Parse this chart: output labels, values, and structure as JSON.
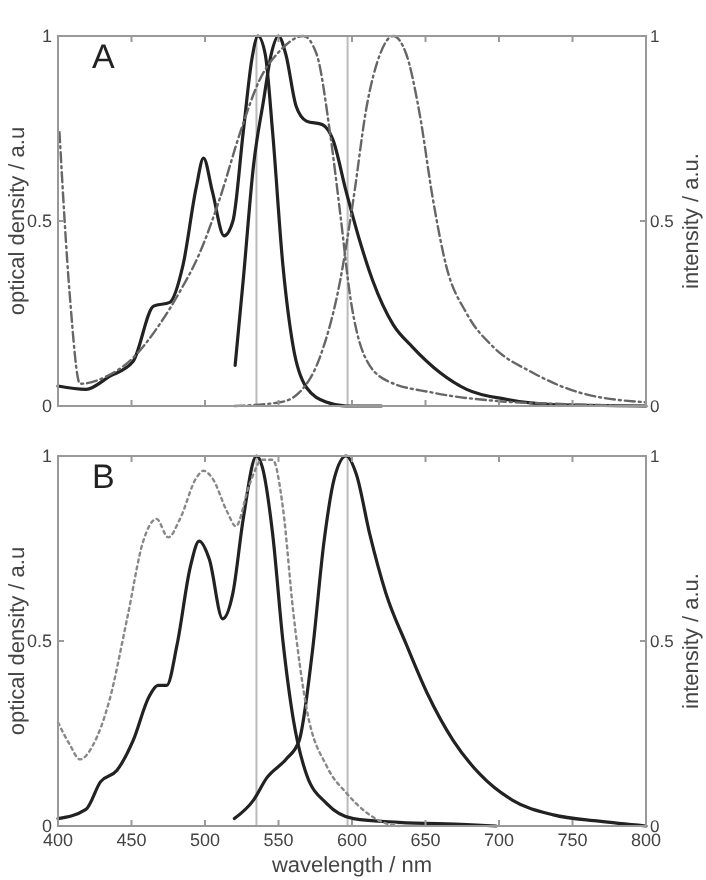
{
  "chart_data": [
    {
      "type": "line",
      "annotations": [
        "A"
      ],
      "ylabel": "optical density / a.u",
      "y2label": "intensity / a.u.",
      "xlim": [
        400,
        800
      ],
      "xticks": [
        400,
        450,
        500,
        550,
        600,
        650,
        700,
        750,
        800
      ],
      "ylim": [
        0,
        1
      ],
      "yticks": [
        0,
        0.5,
        1
      ],
      "y2lim": [
        0,
        1
      ],
      "y2ticks": [
        0,
        0.5,
        1
      ],
      "tick_labels": "y",
      "grid": false,
      "ref_lines": [
        {
          "axis": "x",
          "value": 535,
          "color": "#bbbbbb"
        },
        {
          "axis": "x",
          "value": 597,
          "color": "#bbbbbb"
        }
      ],
      "series": [
        {
          "color": "#222222",
          "line_style": "solid",
          "x": [
            400,
            419,
            435,
            451,
            465,
            476,
            485,
            494,
            499,
            505,
            513,
            519,
            526,
            532,
            536,
            541,
            546,
            553,
            560,
            569,
            583,
            596,
            620
          ],
          "values": [
            0.054,
            0.045,
            0.08,
            0.12,
            0.27,
            0.28,
            0.38,
            0.59,
            0.67,
            0.58,
            0.46,
            0.5,
            0.74,
            0.94,
            1,
            0.95,
            0.74,
            0.38,
            0.16,
            0.05,
            0.01,
            0,
            0
          ]
        },
        {
          "color": "#222222",
          "line_style": "solid",
          "x": [
            520.5,
            526,
            533,
            540,
            545,
            550,
            555,
            562,
            569,
            580,
            587,
            596,
            605,
            614,
            628,
            641,
            660,
            678,
            705,
            736,
            800
          ],
          "values": [
            0.11,
            0.34,
            0.65,
            0.83,
            0.95,
            1,
            0.95,
            0.81,
            0.77,
            0.76,
            0.72,
            0.58,
            0.45,
            0.34,
            0.22,
            0.16,
            0.09,
            0.045,
            0.018,
            0.004,
            0
          ]
        },
        {
          "color": "#666666",
          "line_style": "dashed",
          "x": [
            401,
            408,
            415,
            433,
            451,
            469,
            483,
            496,
            510,
            524,
            537,
            551,
            567,
            576,
            585,
            592,
            599,
            608,
            623,
            655,
            700,
            746,
            800
          ],
          "values": [
            0.74,
            0.3,
            0.06,
            0.08,
            0.13,
            0.22,
            0.31,
            0.41,
            0.56,
            0.74,
            0.88,
            0.96,
            1,
            0.95,
            0.74,
            0.52,
            0.29,
            0.14,
            0.07,
            0.036,
            0.013,
            0.005,
            0
          ]
        },
        {
          "color": "#666666",
          "line_style": "dashed",
          "x": [
            520,
            551,
            564,
            578,
            592,
            601,
            610,
            619,
            628,
            637,
            646,
            655,
            664,
            678,
            696,
            723,
            755,
            800
          ],
          "values": [
            0,
            0.01,
            0.036,
            0.13,
            0.34,
            0.56,
            0.81,
            0.95,
            1,
            0.95,
            0.79,
            0.56,
            0.38,
            0.25,
            0.16,
            0.09,
            0.036,
            0.01
          ]
        }
      ]
    },
    {
      "type": "line",
      "annotations": [
        "B"
      ],
      "xlabel": "wavelength / nm",
      "ylabel": "optical density / a.u",
      "y2label": "intensity / a.u.",
      "xlim": [
        400,
        800
      ],
      "xticks": [
        400,
        450,
        500,
        550,
        600,
        650,
        700,
        750,
        800
      ],
      "ylim": [
        0,
        1
      ],
      "yticks": [
        0,
        0.5,
        1
      ],
      "y2lim": [
        0,
        1
      ],
      "y2ticks": [
        0,
        0.5,
        1
      ],
      "grid": false,
      "ref_lines": [
        {
          "axis": "x",
          "value": 535,
          "color": "#bbbbbb"
        },
        {
          "axis": "x",
          "value": 597,
          "color": "#bbbbbb"
        }
      ],
      "series": [
        {
          "color": "#222222",
          "line_style": "solid",
          "x": [
            400,
            419,
            429,
            440,
            451,
            462,
            468,
            474,
            481,
            490,
            496,
            503,
            512,
            519,
            526,
            535,
            539,
            546,
            553,
            560,
            569,
            583,
            601,
            632,
            678,
            698
          ],
          "values": [
            0.02,
            0.045,
            0.12,
            0.15,
            0.23,
            0.35,
            0.38,
            0.38,
            0.49,
            0.7,
            0.77,
            0.72,
            0.56,
            0.63,
            0.83,
            1,
            0.97,
            0.79,
            0.5,
            0.29,
            0.14,
            0.06,
            0.02,
            0.01,
            0.004,
            0
          ]
        },
        {
          "color": "#222222",
          "line_style": "solid",
          "x": [
            520,
            533,
            542,
            555,
            564,
            573,
            581,
            588,
            596,
            603,
            612,
            623,
            637,
            651,
            669,
            687,
            709,
            737,
            768,
            800
          ],
          "values": [
            0.02,
            0.07,
            0.13,
            0.18,
            0.23,
            0.47,
            0.77,
            0.94,
            1,
            0.95,
            0.79,
            0.63,
            0.49,
            0.36,
            0.23,
            0.14,
            0.07,
            0.03,
            0.013,
            0
          ]
        },
        {
          "color": "#888888",
          "line_style": "dotted",
          "x": [
            400,
            408,
            415,
            424,
            435,
            447,
            458,
            467,
            475,
            483,
            494,
            499,
            505,
            515,
            521,
            530,
            539,
            546,
            553,
            560,
            569,
            583,
            596,
            610,
            621,
            632
          ],
          "values": [
            0.28,
            0.22,
            0.18,
            0.22,
            0.34,
            0.56,
            0.77,
            0.83,
            0.78,
            0.83,
            0.94,
            0.96,
            0.94,
            0.85,
            0.81,
            0.92,
            0.99,
            0.99,
            0.86,
            0.58,
            0.32,
            0.16,
            0.09,
            0.036,
            0.01,
            0
          ]
        }
      ]
    }
  ]
}
